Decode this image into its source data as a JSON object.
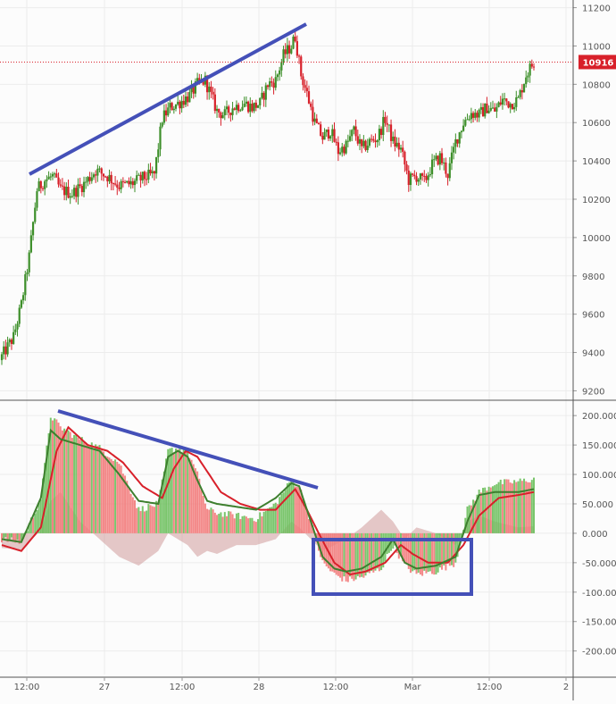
{
  "colors": {
    "background": "#fcfcfc",
    "up": "#3d8f2a",
    "down": "#d8202a",
    "grid": "#ececec",
    "axis_text": "#555555",
    "trendline": "#4450b8",
    "price_label_bg": "#d8202a",
    "macd_line": "#3d7f2e",
    "signal_line": "#d8202a",
    "hist_pos": "#6cbf5c",
    "hist_neg": "#f27a7a",
    "shade": "#cf9a9a"
  },
  "price_panel": {
    "ylim": [
      9160,
      11240
    ],
    "y_ticks": [
      "11200",
      "11000",
      "10800",
      "10600",
      "10400",
      "10200",
      "10000",
      "9800",
      "9600",
      "9400",
      "9200"
    ],
    "last_price_label": "10916",
    "last_price": 10916
  },
  "indicator_panel": {
    "ylim": [
      -240,
      220
    ],
    "y_ticks": [
      "200.000",
      "150.000",
      "100.000",
      "50.000",
      "0.000",
      "-50.000",
      "-100.000",
      "-150.000",
      "-200.000"
    ]
  },
  "x_axis": {
    "labels": [
      "12:00",
      "27",
      "12:00",
      "28",
      "12:00",
      "Mar",
      "12:00",
      "2"
    ]
  },
  "chart_data": [
    {
      "type": "candlestick",
      "y_axis_range": [
        9160,
        11240
      ],
      "x_tick_labels": [
        "12:00",
        "27",
        "12:00",
        "28",
        "12:00",
        "Mar",
        "12:00",
        "2"
      ],
      "close_path": [
        [
          0,
          9380
        ],
        [
          6,
          9480
        ],
        [
          10,
          9650
        ],
        [
          14,
          9900
        ],
        [
          18,
          10250
        ],
        [
          22,
          10300
        ],
        [
          26,
          10320
        ],
        [
          30,
          10250
        ],
        [
          36,
          10230
        ],
        [
          42,
          10280
        ],
        [
          48,
          10350
        ],
        [
          54,
          10320
        ],
        [
          60,
          10270
        ],
        [
          66,
          10280
        ],
        [
          72,
          10310
        ],
        [
          78,
          10330
        ],
        [
          82,
          10620
        ],
        [
          86,
          10680
        ],
        [
          90,
          10700
        ],
        [
          96,
          10740
        ],
        [
          100,
          10800
        ],
        [
          104,
          10820
        ],
        [
          110,
          10660
        ],
        [
          114,
          10640
        ],
        [
          118,
          10680
        ],
        [
          124,
          10700
        ],
        [
          128,
          10680
        ],
        [
          132,
          10700
        ],
        [
          136,
          10800
        ],
        [
          140,
          10820
        ],
        [
          144,
          10950
        ],
        [
          148,
          11000
        ],
        [
          150,
          11050
        ],
        [
          153,
          10850
        ],
        [
          156,
          10750
        ],
        [
          160,
          10600
        ],
        [
          164,
          10520
        ],
        [
          168,
          10560
        ],
        [
          172,
          10450
        ],
        [
          176,
          10480
        ],
        [
          180,
          10560
        ],
        [
          184,
          10460
        ],
        [
          188,
          10500
        ],
        [
          192,
          10520
        ],
        [
          196,
          10620
        ],
        [
          200,
          10500
        ],
        [
          204,
          10460
        ],
        [
          208,
          10300
        ],
        [
          212,
          10320
        ],
        [
          216,
          10290
        ],
        [
          220,
          10380
        ],
        [
          224,
          10420
        ],
        [
          228,
          10330
        ],
        [
          232,
          10500
        ],
        [
          236,
          10600
        ],
        [
          240,
          10650
        ],
        [
          244,
          10640
        ],
        [
          248,
          10680
        ],
        [
          252,
          10660
        ],
        [
          256,
          10720
        ],
        [
          260,
          10700
        ],
        [
          264,
          10720
        ],
        [
          268,
          10850
        ],
        [
          272,
          10916
        ]
      ]
    },
    {
      "type": "line",
      "x_tick_labels": [
        "12:00",
        "27",
        "12:00",
        "28",
        "12:00",
        "Mar",
        "12:00",
        "2"
      ],
      "y_axis_range": [
        -240,
        220
      ],
      "series": [
        {
          "role": "fast",
          "points": [
            [
              0,
              -10
            ],
            [
              10,
              -15
            ],
            [
              20,
              60
            ],
            [
              25,
              175
            ],
            [
              30,
              160
            ],
            [
              40,
              150
            ],
            [
              50,
              140
            ],
            [
              60,
              100
            ],
            [
              70,
              55
            ],
            [
              80,
              50
            ],
            [
              85,
              130
            ],
            [
              90,
              140
            ],
            [
              95,
              130
            ],
            [
              100,
              90
            ],
            [
              105,
              55
            ],
            [
              110,
              50
            ],
            [
              120,
              45
            ],
            [
              130,
              40
            ],
            [
              140,
              60
            ],
            [
              148,
              85
            ],
            [
              152,
              80
            ],
            [
              158,
              20
            ],
            [
              164,
              -40
            ],
            [
              170,
              -60
            ],
            [
              176,
              -65
            ],
            [
              184,
              -60
            ],
            [
              194,
              -40
            ],
            [
              200,
              -10
            ],
            [
              206,
              -50
            ],
            [
              212,
              -60
            ],
            [
              222,
              -55
            ],
            [
              232,
              -40
            ],
            [
              238,
              20
            ],
            [
              244,
              65
            ],
            [
              252,
              70
            ],
            [
              264,
              70
            ],
            [
              272,
              75
            ]
          ]
        },
        {
          "role": "slow",
          "points": [
            [
              0,
              -20
            ],
            [
              10,
              -30
            ],
            [
              20,
              10
            ],
            [
              28,
              140
            ],
            [
              34,
              180
            ],
            [
              44,
              150
            ],
            [
              54,
              140
            ],
            [
              62,
              120
            ],
            [
              72,
              80
            ],
            [
              82,
              60
            ],
            [
              88,
              110
            ],
            [
              94,
              140
            ],
            [
              100,
              130
            ],
            [
              106,
              100
            ],
            [
              112,
              70
            ],
            [
              122,
              50
            ],
            [
              132,
              40
            ],
            [
              140,
              40
            ],
            [
              150,
              75
            ],
            [
              156,
              40
            ],
            [
              162,
              0
            ],
            [
              170,
              -50
            ],
            [
              178,
              -70
            ],
            [
              186,
              -65
            ],
            [
              196,
              -50
            ],
            [
              204,
              -20
            ],
            [
              210,
              -35
            ],
            [
              218,
              -50
            ],
            [
              228,
              -50
            ],
            [
              236,
              -20
            ],
            [
              244,
              30
            ],
            [
              254,
              60
            ],
            [
              264,
              65
            ],
            [
              272,
              70
            ]
          ]
        },
        {
          "role": "histogram",
          "points": [
            [
              0,
              -10
            ],
            [
              10,
              -15
            ],
            [
              20,
              60
            ],
            [
              25,
              200
            ],
            [
              30,
              180
            ],
            [
              40,
              160
            ],
            [
              50,
              145
            ],
            [
              60,
              120
            ],
            [
              70,
              40
            ],
            [
              80,
              50
            ],
            [
              85,
              140
            ],
            [
              90,
              145
            ],
            [
              95,
              140
            ],
            [
              100,
              100
            ],
            [
              105,
              40
            ],
            [
              110,
              35
            ],
            [
              120,
              30
            ],
            [
              130,
              25
            ],
            [
              140,
              50
            ],
            [
              148,
              90
            ],
            [
              152,
              80
            ],
            [
              158,
              20
            ],
            [
              164,
              -50
            ],
            [
              170,
              -70
            ],
            [
              176,
              -80
            ],
            [
              184,
              -75
            ],
            [
              194,
              -60
            ],
            [
              200,
              -20
            ],
            [
              206,
              -55
            ],
            [
              212,
              -70
            ],
            [
              222,
              -65
            ],
            [
              232,
              -50
            ],
            [
              238,
              40
            ],
            [
              244,
              70
            ],
            [
              252,
              85
            ],
            [
              264,
              88
            ],
            [
              272,
              92
            ]
          ]
        },
        {
          "role": "shaded",
          "points": [
            [
              0,
              -25
            ],
            [
              10,
              -28
            ],
            [
              20,
              5
            ],
            [
              25,
              55
            ],
            [
              30,
              70
            ],
            [
              40,
              20
            ],
            [
              50,
              -10
            ],
            [
              60,
              -40
            ],
            [
              70,
              -55
            ],
            [
              80,
              -30
            ],
            [
              85,
              0
            ],
            [
              90,
              -10
            ],
            [
              95,
              -20
            ],
            [
              100,
              -40
            ],
            [
              105,
              -30
            ],
            [
              110,
              -35
            ],
            [
              120,
              -20
            ],
            [
              130,
              -20
            ],
            [
              140,
              -10
            ],
            [
              148,
              20
            ],
            [
              152,
              10
            ],
            [
              158,
              -10
            ],
            [
              164,
              -30
            ],
            [
              170,
              -20
            ],
            [
              176,
              -10
            ],
            [
              184,
              10
            ],
            [
              194,
              40
            ],
            [
              200,
              20
            ],
            [
              206,
              -10
            ],
            [
              212,
              10
            ],
            [
              222,
              0
            ],
            [
              232,
              -20
            ],
            [
              238,
              20
            ],
            [
              244,
              30
            ],
            [
              252,
              20
            ],
            [
              264,
              10
            ],
            [
              272,
              12
            ]
          ]
        }
      ]
    }
  ]
}
